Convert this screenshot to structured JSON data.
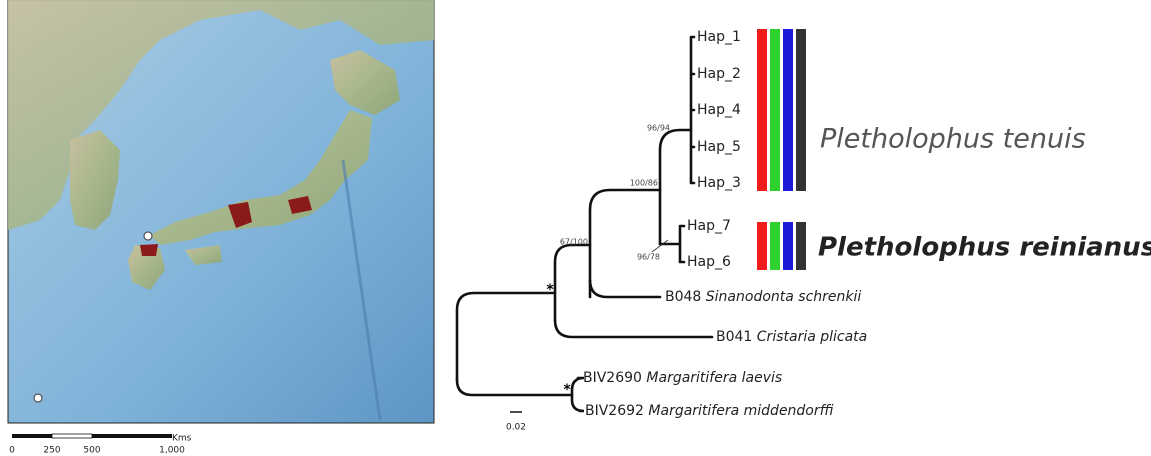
{
  "map_scale": {
    "unit": "Kms",
    "labels": [
      "0",
      "250",
      "500",
      "1,000"
    ]
  },
  "tips": [
    {
      "code": "Hap_1"
    },
    {
      "code": "Hap_2"
    },
    {
      "code": "Hap_4"
    },
    {
      "code": "Hap_5"
    },
    {
      "code": "Hap_3"
    },
    {
      "code": "Hap_7"
    },
    {
      "code": "Hap_6"
    },
    {
      "code": "B048",
      "species": "Sinanodonta schrenkii"
    },
    {
      "code": "B041",
      "species": "Cristaria plicata"
    },
    {
      "code": "BIV2690",
      "species": "Margaritifera laevis"
    },
    {
      "code": "BIV2692",
      "species": "Margaritifera middendorffi"
    }
  ],
  "support": [
    "96/94",
    "100/86",
    "67/100",
    "96/78",
    "*",
    "*"
  ],
  "tree_scale": "0.02",
  "clades": [
    "Pletholophus tenuis",
    "Pletholophus reinianus"
  ]
}
